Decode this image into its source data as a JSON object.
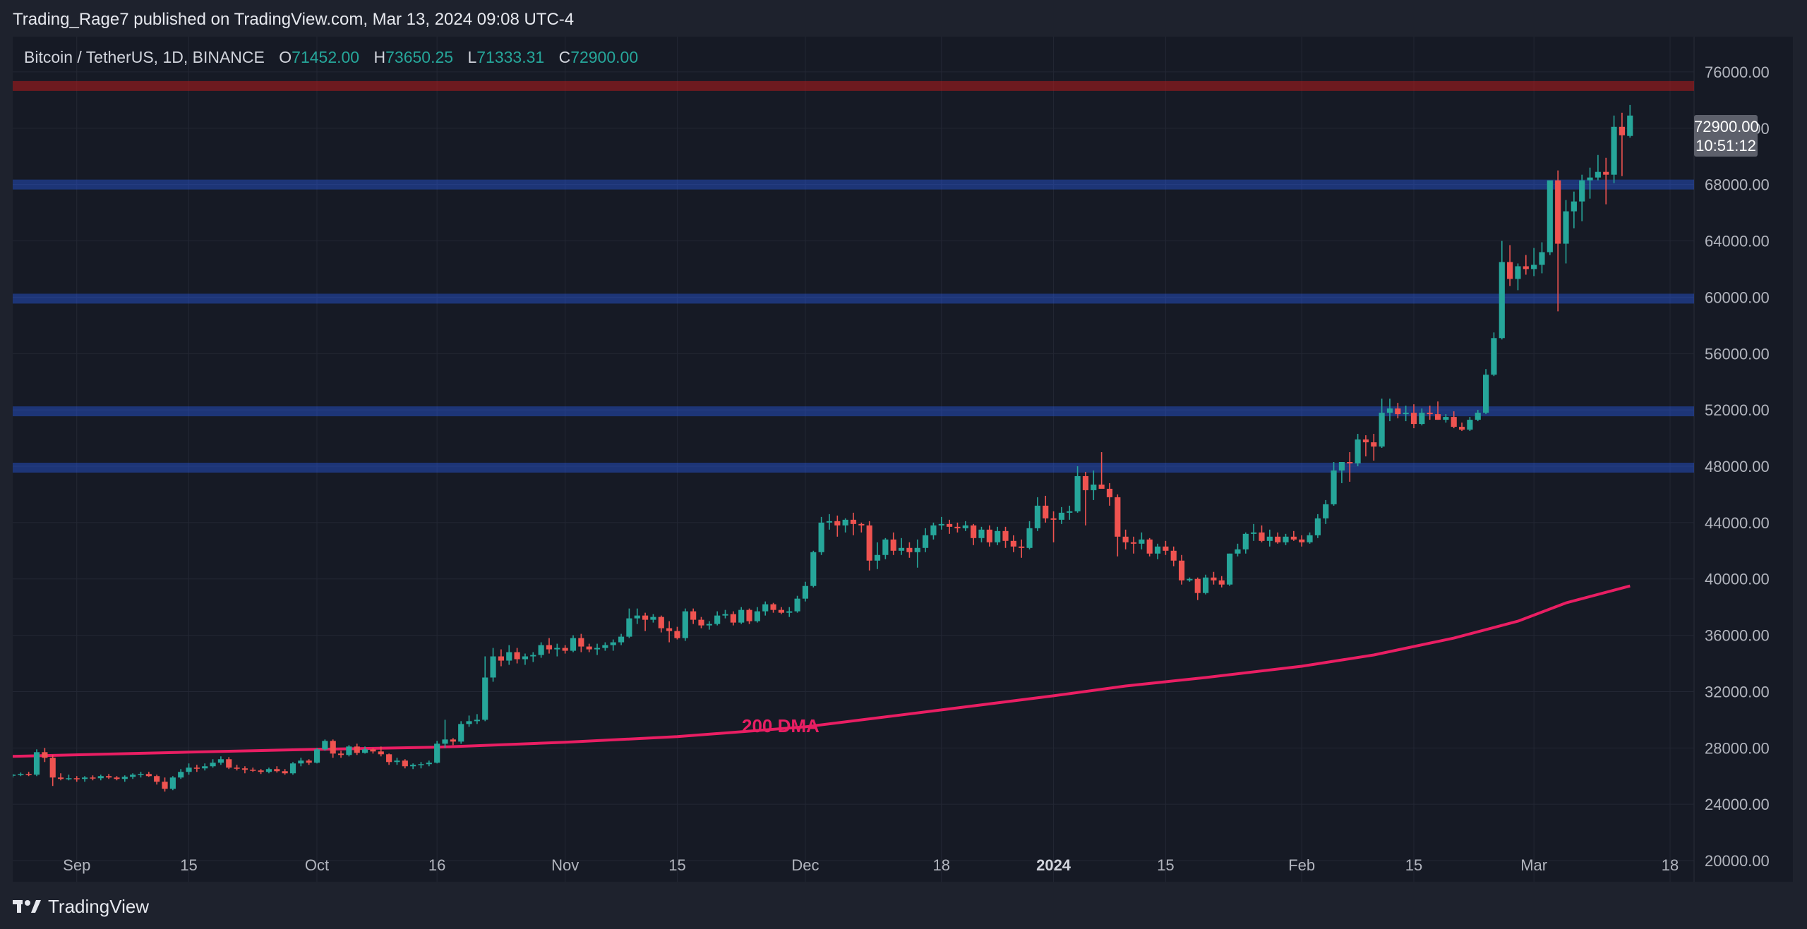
{
  "header": {
    "published_by": "Trading_Rage7 published on TradingView.com, Mar 13, 2024 09:08 UTC-4"
  },
  "symbol": {
    "title": "Bitcoin / TetherUS, 1D, BINANCE",
    "open_label": "O",
    "open": "71452.00",
    "high_label": "H",
    "high": "73650.25",
    "low_label": "L",
    "low": "71333.31",
    "close_label": "C",
    "close": "72900.00"
  },
  "price_badge": {
    "price": "72900.00",
    "countdown": "10:51:12"
  },
  "footer": {
    "brand": "TradingView",
    "logo_icon": "tradingview-logo-icon"
  },
  "colors": {
    "up": "#26a69a",
    "down": "#ef5350",
    "ma": "#e91e63",
    "support": "#2962ff",
    "resistance": "#b71c1c",
    "grid": "#232734",
    "background": "#161a25"
  },
  "chart_data": {
    "type": "candlestick",
    "title": "Bitcoin / TetherUS, 1D, BINANCE",
    "ylim": [
      18500,
      78500
    ],
    "y_ticks": [
      "20000.00",
      "24000.00",
      "28000.00",
      "32000.00",
      "36000.00",
      "40000.00",
      "44000.00",
      "48000.00",
      "52000.00",
      "56000.00",
      "60000.00",
      "64000.00",
      "68000.00",
      "72000.00",
      "76000.00"
    ],
    "x_range": [
      "2023-08-24",
      "2024-03-21"
    ],
    "x_ticks": [
      {
        "date": "2023-09-01",
        "label": "Sep"
      },
      {
        "date": "2023-09-15",
        "label": "15"
      },
      {
        "date": "2023-10-01",
        "label": "Oct"
      },
      {
        "date": "2023-10-16",
        "label": "16"
      },
      {
        "date": "2023-11-01",
        "label": "Nov"
      },
      {
        "date": "2023-11-15",
        "label": "15"
      },
      {
        "date": "2023-12-01",
        "label": "Dec"
      },
      {
        "date": "2023-12-18",
        "label": "18"
      },
      {
        "date": "2024-01-01",
        "label": "2024",
        "bold": true
      },
      {
        "date": "2024-01-15",
        "label": "15"
      },
      {
        "date": "2024-02-01",
        "label": "Feb"
      },
      {
        "date": "2024-02-15",
        "label": "15"
      },
      {
        "date": "2024-03-01",
        "label": "Mar"
      },
      {
        "date": "2024-03-18",
        "label": "18"
      }
    ],
    "candles_start": "2023-08-23",
    "candles": [
      [
        26100,
        26200,
        25950,
        26050
      ],
      [
        26050,
        26150,
        25900,
        26100
      ],
      [
        26100,
        26250,
        26000,
        26150
      ],
      [
        26150,
        26300,
        26000,
        26100
      ],
      [
        26100,
        27900,
        26000,
        27700
      ],
      [
        27700,
        28000,
        27000,
        27300
      ],
      [
        27300,
        27500,
        25300,
        25900
      ],
      [
        25900,
        26200,
        25700,
        25800
      ],
      [
        25800,
        26100,
        25700,
        25850
      ],
      [
        25850,
        26000,
        25600,
        25800
      ],
      [
        25800,
        26000,
        25600,
        25900
      ],
      [
        25900,
        26050,
        25700,
        25850
      ],
      [
        25850,
        26100,
        25700,
        26000
      ],
      [
        26000,
        26150,
        25800,
        25900
      ],
      [
        25900,
        26000,
        25700,
        25800
      ],
      [
        25800,
        26050,
        25600,
        25950
      ],
      [
        25950,
        26200,
        25800,
        26100
      ],
      [
        26100,
        26300,
        25900,
        26150
      ],
      [
        26150,
        26300,
        25950,
        26000
      ],
      [
        26000,
        26100,
        25400,
        25600
      ],
      [
        25600,
        25900,
        24900,
        25100
      ],
      [
        25100,
        26000,
        25000,
        25900
      ],
      [
        25900,
        26500,
        25800,
        26300
      ],
      [
        26300,
        26900,
        26100,
        26600
      ],
      [
        26600,
        26800,
        26300,
        26550
      ],
      [
        26550,
        26900,
        26400,
        26700
      ],
      [
        26700,
        27200,
        26600,
        26950
      ],
      [
        26950,
        27400,
        26800,
        27200
      ],
      [
        27200,
        27350,
        26500,
        26600
      ],
      [
        26600,
        26800,
        26400,
        26550
      ],
      [
        26550,
        26700,
        26200,
        26450
      ],
      [
        26450,
        26600,
        26300,
        26400
      ],
      [
        26400,
        26500,
        26150,
        26300
      ],
      [
        26300,
        26600,
        26200,
        26500
      ],
      [
        26500,
        26700,
        26250,
        26350
      ],
      [
        26350,
        26500,
        26100,
        26200
      ],
      [
        26200,
        27000,
        26100,
        26900
      ],
      [
        26900,
        27300,
        26700,
        27100
      ],
      [
        27100,
        27200,
        26800,
        26950
      ],
      [
        26950,
        28000,
        26900,
        27900
      ],
      [
        27900,
        28600,
        27800,
        28500
      ],
      [
        28500,
        28600,
        27300,
        27600
      ],
      [
        27600,
        27800,
        27300,
        27500
      ],
      [
        27500,
        28200,
        27400,
        28100
      ],
      [
        28100,
        28300,
        27500,
        27650
      ],
      [
        27650,
        28100,
        27600,
        27900
      ],
      [
        27900,
        28000,
        27600,
        27750
      ],
      [
        27750,
        28100,
        27400,
        27550
      ],
      [
        27550,
        27600,
        26800,
        27000
      ],
      [
        27000,
        27300,
        26800,
        27100
      ],
      [
        27100,
        27200,
        26550,
        26700
      ],
      [
        26700,
        26900,
        26500,
        26800
      ],
      [
        26800,
        27000,
        26550,
        26850
      ],
      [
        26850,
        27100,
        26700,
        26950
      ],
      [
        26950,
        28500,
        26900,
        28300
      ],
      [
        28300,
        30000,
        28000,
        28600
      ],
      [
        28600,
        28700,
        28200,
        28450
      ],
      [
        28450,
        29900,
        28300,
        29700
      ],
      [
        29700,
        30300,
        29500,
        29900
      ],
      [
        29900,
        30400,
        29700,
        30000
      ],
      [
        30000,
        34500,
        29900,
        33000
      ],
      [
        33000,
        35100,
        32700,
        34500
      ],
      [
        34500,
        35000,
        33800,
        34200
      ],
      [
        34200,
        35300,
        33900,
        34800
      ],
      [
        34800,
        35100,
        34000,
        34300
      ],
      [
        34300,
        34700,
        33900,
        34500
      ],
      [
        34500,
        34800,
        34100,
        34600
      ],
      [
        34600,
        35500,
        34400,
        35300
      ],
      [
        35300,
        35800,
        34700,
        35000
      ],
      [
        35000,
        35400,
        34500,
        35100
      ],
      [
        35100,
        35300,
        34700,
        34900
      ],
      [
        34900,
        36000,
        34800,
        35800
      ],
      [
        35800,
        36100,
        34800,
        35200
      ],
      [
        35200,
        35400,
        34800,
        35000
      ],
      [
        35000,
        35400,
        34600,
        35100
      ],
      [
        35100,
        35500,
        34900,
        35300
      ],
      [
        35300,
        35700,
        34900,
        35500
      ],
      [
        35500,
        36100,
        35300,
        35900
      ],
      [
        35900,
        37900,
        35800,
        37200
      ],
      [
        37200,
        37900,
        36800,
        37400
      ],
      [
        37400,
        37600,
        36300,
        37100
      ],
      [
        37100,
        37500,
        36900,
        37300
      ],
      [
        37300,
        37400,
        36200,
        36500
      ],
      [
        36500,
        37000,
        35500,
        36300
      ],
      [
        36300,
        36600,
        35700,
        35800
      ],
      [
        35800,
        37900,
        35600,
        37700
      ],
      [
        37700,
        37900,
        36800,
        37100
      ],
      [
        37100,
        37300,
        36500,
        36700
      ],
      [
        36700,
        37000,
        36400,
        36800
      ],
      [
        36800,
        37700,
        36700,
        37400
      ],
      [
        37400,
        37800,
        37200,
        37500
      ],
      [
        37500,
        37700,
        36700,
        36900
      ],
      [
        36900,
        38000,
        36800,
        37800
      ],
      [
        37800,
        37900,
        36800,
        37000
      ],
      [
        37000,
        38000,
        36900,
        37700
      ],
      [
        37700,
        38400,
        37400,
        38200
      ],
      [
        38200,
        38300,
        37600,
        37800
      ],
      [
        37800,
        38000,
        37500,
        37600
      ],
      [
        37600,
        38000,
        37300,
        37700
      ],
      [
        37700,
        38800,
        37600,
        38600
      ],
      [
        38600,
        39800,
        38400,
        39500
      ],
      [
        39500,
        42000,
        39400,
        41900
      ],
      [
        41900,
        44400,
        41700,
        44000
      ],
      [
        44000,
        44600,
        43500,
        44100
      ],
      [
        44100,
        44500,
        43000,
        43800
      ],
      [
        43800,
        44300,
        43300,
        44200
      ],
      [
        44200,
        44700,
        43100,
        43900
      ],
      [
        43900,
        44000,
        43300,
        43800
      ],
      [
        43800,
        44100,
        40600,
        41300
      ],
      [
        41300,
        42600,
        40700,
        41700
      ],
      [
        41700,
        42900,
        41400,
        42800
      ],
      [
        42800,
        43300,
        41700,
        42000
      ],
      [
        42000,
        42900,
        41700,
        42200
      ],
      [
        42200,
        42600,
        41500,
        41900
      ],
      [
        41900,
        42800,
        40800,
        42200
      ],
      [
        42200,
        43600,
        41900,
        43100
      ],
      [
        43100,
        44000,
        42800,
        43800
      ],
      [
        43800,
        44400,
        43500,
        43900
      ],
      [
        43900,
        44200,
        43200,
        43700
      ],
      [
        43700,
        44000,
        43300,
        43600
      ],
      [
        43600,
        44100,
        43400,
        43800
      ],
      [
        43800,
        43900,
        42400,
        42900
      ],
      [
        42900,
        43700,
        42600,
        43500
      ],
      [
        43500,
        43800,
        42300,
        42600
      ],
      [
        42600,
        43700,
        42400,
        43400
      ],
      [
        43400,
        43700,
        42200,
        42700
      ],
      [
        42700,
        43100,
        41900,
        42300
      ],
      [
        42300,
        42800,
        41500,
        42200
      ],
      [
        42200,
        44100,
        42100,
        43600
      ],
      [
        43600,
        45800,
        43400,
        45200
      ],
      [
        45200,
        45900,
        44000,
        44300
      ],
      [
        44300,
        44800,
        42600,
        44200
      ],
      [
        44200,
        45100,
        43900,
        44700
      ],
      [
        44700,
        45200,
        44200,
        44800
      ],
      [
        44800,
        48000,
        44700,
        47300
      ],
      [
        47300,
        47600,
        43800,
        46300
      ],
      [
        46300,
        47700,
        45600,
        46700
      ],
      [
        46700,
        49000,
        46500,
        46400
      ],
      [
        46400,
        46800,
        45200,
        45800
      ],
      [
        45800,
        46000,
        41600,
        43000
      ],
      [
        43000,
        43500,
        42100,
        42600
      ],
      [
        42600,
        43000,
        41800,
        42500
      ],
      [
        42500,
        43300,
        42100,
        42800
      ],
      [
        42800,
        42900,
        41600,
        41800
      ],
      [
        41800,
        42500,
        41400,
        42300
      ],
      [
        42300,
        42700,
        41700,
        42000
      ],
      [
        42000,
        42300,
        40900,
        41300
      ],
      [
        41300,
        41700,
        39600,
        39900
      ],
      [
        39900,
        40100,
        39800,
        40000
      ],
      [
        40000,
        40100,
        38500,
        39000
      ],
      [
        39000,
        40300,
        38900,
        40100
      ],
      [
        40100,
        40500,
        39600,
        39900
      ],
      [
        39900,
        40200,
        39400,
        39600
      ],
      [
        39600,
        41800,
        39500,
        41800
      ],
      [
        41800,
        42500,
        41600,
        42100
      ],
      [
        42100,
        43300,
        41800,
        43200
      ],
      [
        43200,
        43900,
        42700,
        43300
      ],
      [
        43300,
        43800,
        42600,
        42700
      ],
      [
        42700,
        43500,
        42300,
        43000
      ],
      [
        43000,
        43300,
        42500,
        42600
      ],
      [
        42600,
        43200,
        42400,
        43000
      ],
      [
        43000,
        43400,
        42700,
        42800
      ],
      [
        42800,
        43100,
        42300,
        42600
      ],
      [
        42600,
        43300,
        42500,
        43100
      ],
      [
        43100,
        44600,
        42900,
        44300
      ],
      [
        44300,
        45600,
        43900,
        45300
      ],
      [
        45300,
        48300,
        45200,
        47700
      ],
      [
        47700,
        48300,
        46800,
        48300
      ],
      [
        48300,
        49000,
        46900,
        48200
      ],
      [
        48200,
        50300,
        48000,
        49900
      ],
      [
        49900,
        50200,
        48700,
        49700
      ],
      [
        49700,
        50300,
        48400,
        49400
      ],
      [
        49400,
        52800,
        49300,
        51800
      ],
      [
        51800,
        52800,
        51200,
        52100
      ],
      [
        52100,
        52500,
        51400,
        51700
      ],
      [
        51700,
        52300,
        51200,
        51800
      ],
      [
        51800,
        52400,
        50700,
        51000
      ],
      [
        51000,
        52100,
        50900,
        51800
      ],
      [
        51800,
        52300,
        51300,
        51700
      ],
      [
        51700,
        52600,
        51300,
        51300
      ],
      [
        51300,
        51700,
        51100,
        51500
      ],
      [
        51500,
        51900,
        50700,
        50800
      ],
      [
        50800,
        51100,
        50500,
        50600
      ],
      [
        50600,
        51500,
        50500,
        51300
      ],
      [
        51300,
        52000,
        51200,
        51800
      ],
      [
        51800,
        54900,
        51700,
        54500
      ],
      [
        54500,
        57500,
        54400,
        57100
      ],
      [
        57100,
        64000,
        57000,
        62500
      ],
      [
        62500,
        63700,
        60800,
        61300
      ],
      [
        61300,
        62400,
        60500,
        62200
      ],
      [
        62200,
        63000,
        61600,
        62000
      ],
      [
        62000,
        63500,
        61500,
        62300
      ],
      [
        62300,
        63900,
        61700,
        63200
      ],
      [
        63200,
        68100,
        63000,
        68300
      ],
      [
        68300,
        69000,
        59000,
        63800
      ],
      [
        63800,
        66900,
        62400,
        66100
      ],
      [
        66100,
        67500,
        64900,
        66800
      ],
      [
        66800,
        68700,
        65400,
        68300
      ],
      [
        68300,
        69200,
        67000,
        68500
      ],
      [
        68500,
        70100,
        68300,
        68900
      ],
      [
        68900,
        69900,
        66600,
        68700
      ],
      [
        68700,
        72900,
        68100,
        72100
      ],
      [
        72100,
        73100,
        68600,
        71500
      ],
      [
        71452,
        73650.25,
        71333.31,
        72900
      ]
    ],
    "lines": [
      {
        "kind": "resistance",
        "value": 75000
      },
      {
        "kind": "support",
        "value": 68000
      },
      {
        "kind": "support",
        "value": 59900
      },
      {
        "kind": "support",
        "value": 51900
      },
      {
        "kind": "support",
        "value": 47900
      }
    ],
    "ma_series": {
      "name": "200 DMA",
      "points": [
        [
          "2023-08-24",
          27400
        ],
        [
          "2023-09-15",
          27700
        ],
        [
          "2023-10-01",
          27900
        ],
        [
          "2023-10-16",
          28050
        ],
        [
          "2023-11-01",
          28400
        ],
        [
          "2023-11-15",
          28800
        ],
        [
          "2023-12-01",
          29500
        ],
        [
          "2023-12-18",
          30700
        ],
        [
          "2024-01-01",
          31700
        ],
        [
          "2024-01-10",
          32400
        ],
        [
          "2024-01-20",
          33000
        ],
        [
          "2024-02-01",
          33800
        ],
        [
          "2024-02-10",
          34600
        ],
        [
          "2024-02-20",
          35800
        ],
        [
          "2024-02-28",
          37000
        ],
        [
          "2024-03-05",
          38300
        ],
        [
          "2024-03-13",
          39500
        ]
      ]
    }
  }
}
